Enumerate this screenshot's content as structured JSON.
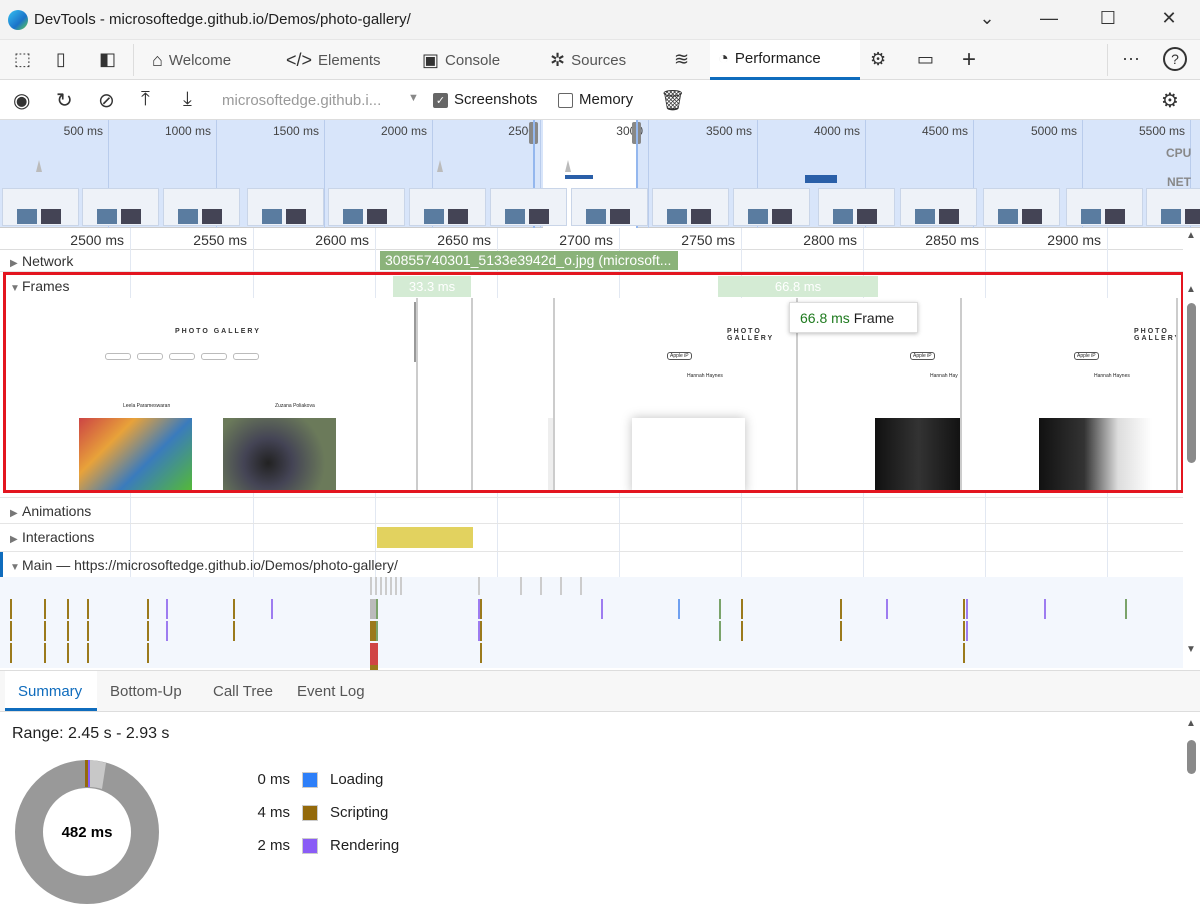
{
  "window": {
    "title": "DevTools - microsoftedge.github.io/Demos/photo-gallery/",
    "minimize": "⌄",
    "restore": "—",
    "maximize": "☐",
    "close": "✕"
  },
  "tabs": [
    {
      "label": "Welcome",
      "icon": "home-icon"
    },
    {
      "label": "Elements",
      "icon": "code-icon"
    },
    {
      "label": "Console",
      "icon": "console-icon"
    },
    {
      "label": "Sources",
      "icon": "bug-icon"
    },
    {
      "label": "Performance",
      "icon": "gauge-icon",
      "active": true
    }
  ],
  "toolbar": {
    "url": "microsoftedge.github.i...",
    "screenshots_label": "Screenshots",
    "screenshots_checked": true,
    "memory_label": "Memory",
    "memory_checked": false
  },
  "overview": {
    "ticks": [
      "500 ms",
      "1000 ms",
      "1500 ms",
      "2000 ms",
      "2500",
      "3000",
      "3500 ms",
      "4000 ms",
      "4500 ms",
      "5000 ms",
      "5500 ms"
    ],
    "cpu_label": "CPU",
    "net_label": "NET"
  },
  "ruler": {
    "ticks": [
      "2500 ms",
      "2550 ms",
      "2600 ms",
      "2650 ms",
      "2700 ms",
      "2750 ms",
      "2800 ms",
      "2850 ms",
      "2900 ms",
      "2"
    ]
  },
  "tracks": {
    "network": "Network",
    "network_request": "30855740301_5133e3942d_o.jpg (microsoft...",
    "frames": "Frames",
    "frame_durations": [
      "33.3 ms",
      "66.8 ms"
    ],
    "animations": "Animations",
    "interactions": "Interactions",
    "main": "Main — https://microsoftedge.github.io/Demos/photo-gallery/"
  },
  "tooltip": {
    "duration": "66.8 ms",
    "label": "Frame"
  },
  "screenshot": {
    "title": "PHOTO GALLERY",
    "filter": "All",
    "camera": "Apple iP",
    "authors": [
      "Leela Parameswaran",
      "Zuzana Poliakova",
      "Hannah Haynes",
      "Hannah Hay",
      "Hannah Haynes"
    ]
  },
  "bottom_tabs": [
    "Summary",
    "Bottom-Up",
    "Call Tree",
    "Event Log"
  ],
  "summary": {
    "range": "Range: 2.45 s - 2.93 s",
    "total": "482 ms",
    "legend": [
      {
        "value": "0 ms",
        "label": "Loading",
        "color": "#2d7ff9"
      },
      {
        "value": "4 ms",
        "label": "Scripting",
        "color": "#946a0b"
      },
      {
        "value": "2 ms",
        "label": "Rendering",
        "color": "#8a5cf6"
      }
    ]
  },
  "colors": {
    "accent": "#0f6cbd",
    "highlight_border": "#e3151f",
    "frame_green": "#d4ebd4",
    "network_bar": "#8bb37a",
    "interaction": "#e2d25f"
  }
}
